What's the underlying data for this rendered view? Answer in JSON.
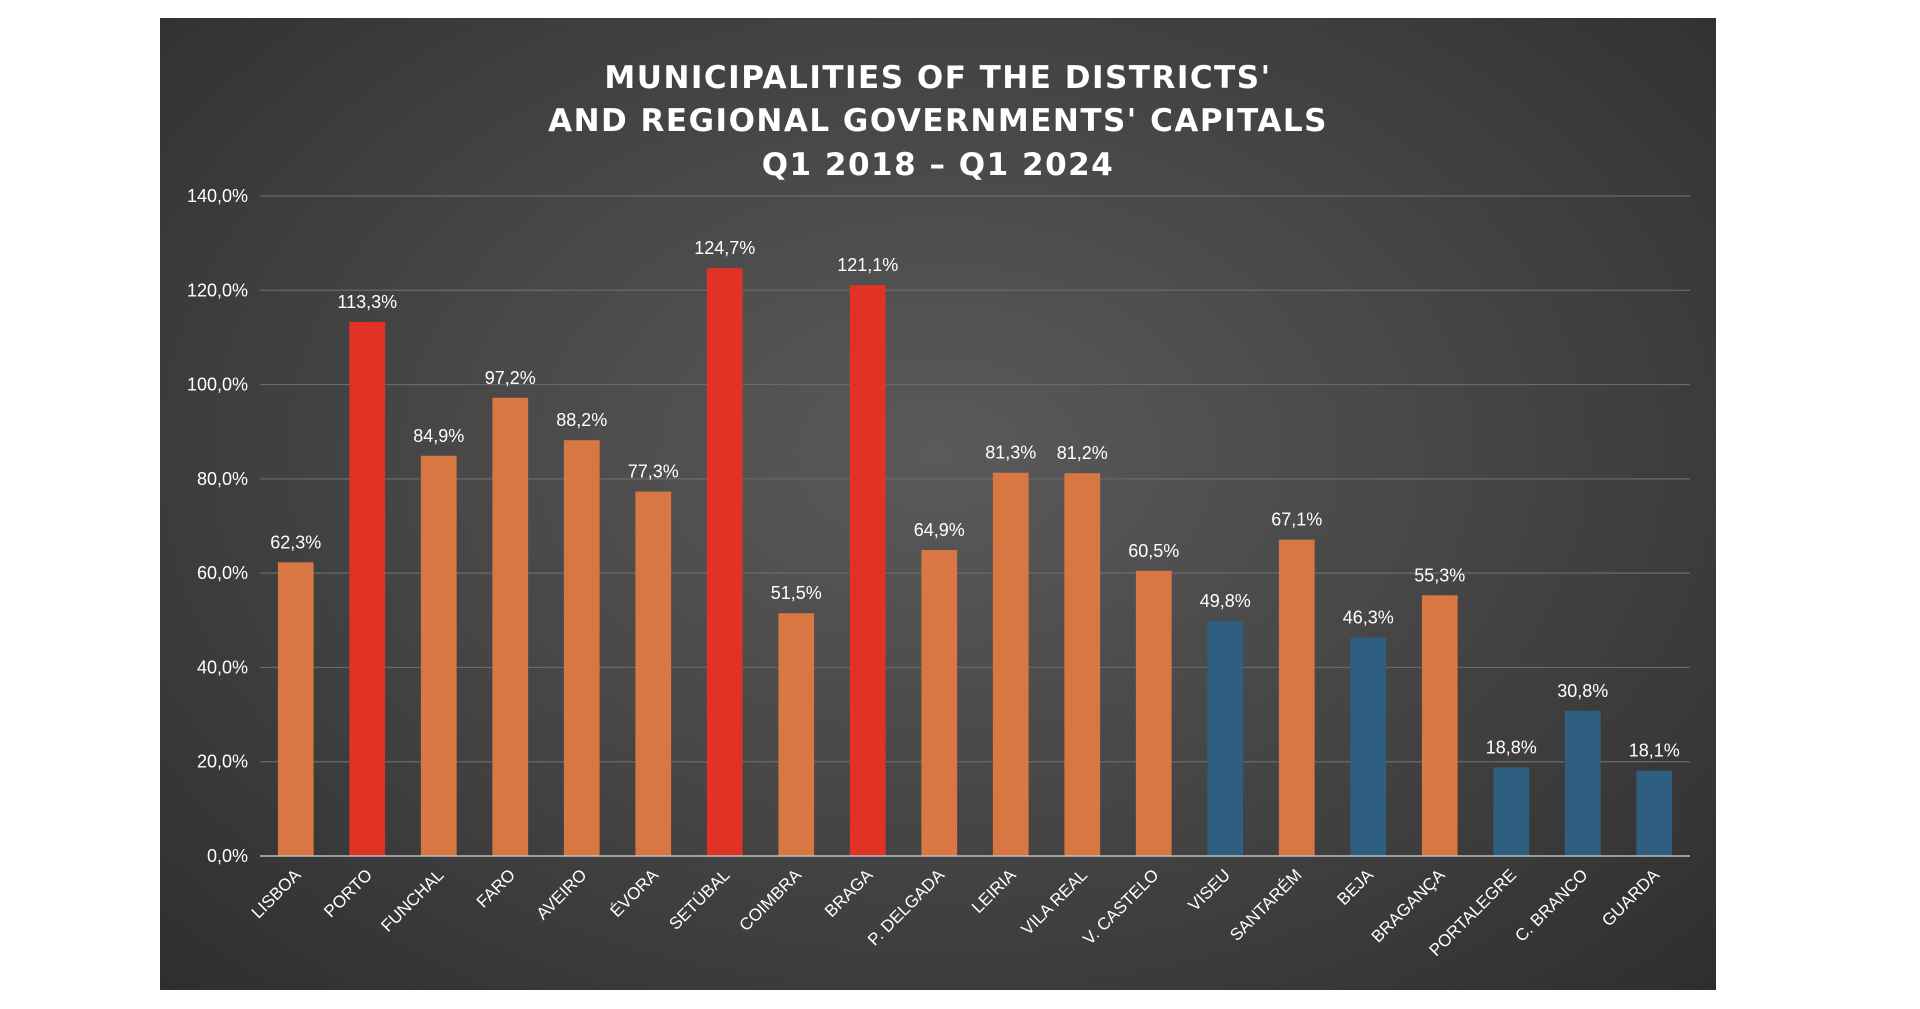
{
  "chart_data": {
    "type": "bar",
    "title_lines": [
      "MUNICIPALITIES OF THE DISTRICTS'",
      "AND REGIONAL GOVERNMENTS' CAPITALS",
      "Q1 2018 – Q1 2024"
    ],
    "xlabel": "",
    "ylabel": "",
    "ylim": [
      0,
      140
    ],
    "ytick_labels": [
      "0,0%",
      "20,0%",
      "40,0%",
      "60,0%",
      "80,0%",
      "100,0%",
      "120,0%",
      "140,0%"
    ],
    "grid": true,
    "categories": [
      "LISBOA",
      "PORTO",
      "FUNCHAL",
      "FARO",
      "AVEIRO",
      "ÉVORA",
      "SETÚBAL",
      "COIMBRA",
      "BRAGA",
      "P. DELGADA",
      "LEIRIA",
      "VILA REAL",
      "V. CASTELO",
      "VISEU",
      "SANTARÉM",
      "BEJA",
      "BRAGANÇA",
      "PORTALEGRE",
      "C. BRANCO",
      "GUARDA"
    ],
    "values": [
      62.3,
      113.3,
      84.9,
      97.2,
      88.2,
      77.3,
      124.7,
      51.5,
      121.1,
      64.9,
      81.3,
      81.2,
      60.5,
      49.8,
      67.1,
      46.3,
      55.3,
      18.8,
      30.8,
      18.1
    ],
    "value_labels": [
      "62,3%",
      "113,3%",
      "84,9%",
      "97,2%",
      "88,2%",
      "77,3%",
      "124,7%",
      "51,5%",
      "121,1%",
      "64,9%",
      "81,3%",
      "81,2%",
      "60,5%",
      "49,8%",
      "67,1%",
      "46,3%",
      "55,3%",
      "18,8%",
      "30,8%",
      "18,1%"
    ],
    "bar_colors": [
      "#D97742",
      "#E03325",
      "#D97742",
      "#D97742",
      "#D97742",
      "#D97742",
      "#E03325",
      "#D97742",
      "#E03325",
      "#D97742",
      "#D97742",
      "#D97742",
      "#D97742",
      "#2E5F80",
      "#D97742",
      "#2E5F80",
      "#D97742",
      "#2E5F80",
      "#2E5F80",
      "#2E5F80"
    ],
    "colors": {
      "orange": "#D97742",
      "red": "#E03325",
      "blue": "#2E5F80",
      "background": "#474747",
      "gridline": "#6a6a6a",
      "text": "#ffffff"
    }
  }
}
